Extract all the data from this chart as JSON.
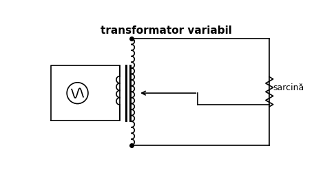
{
  "title": "transformator variabil",
  "title_fontsize": 11,
  "bg_color": "#ffffff",
  "line_color": "#000000",
  "fig_width": 4.72,
  "fig_height": 2.73,
  "dpi": 100,
  "sarcina_label": "sarcină",
  "sarcina_fontsize": 9
}
